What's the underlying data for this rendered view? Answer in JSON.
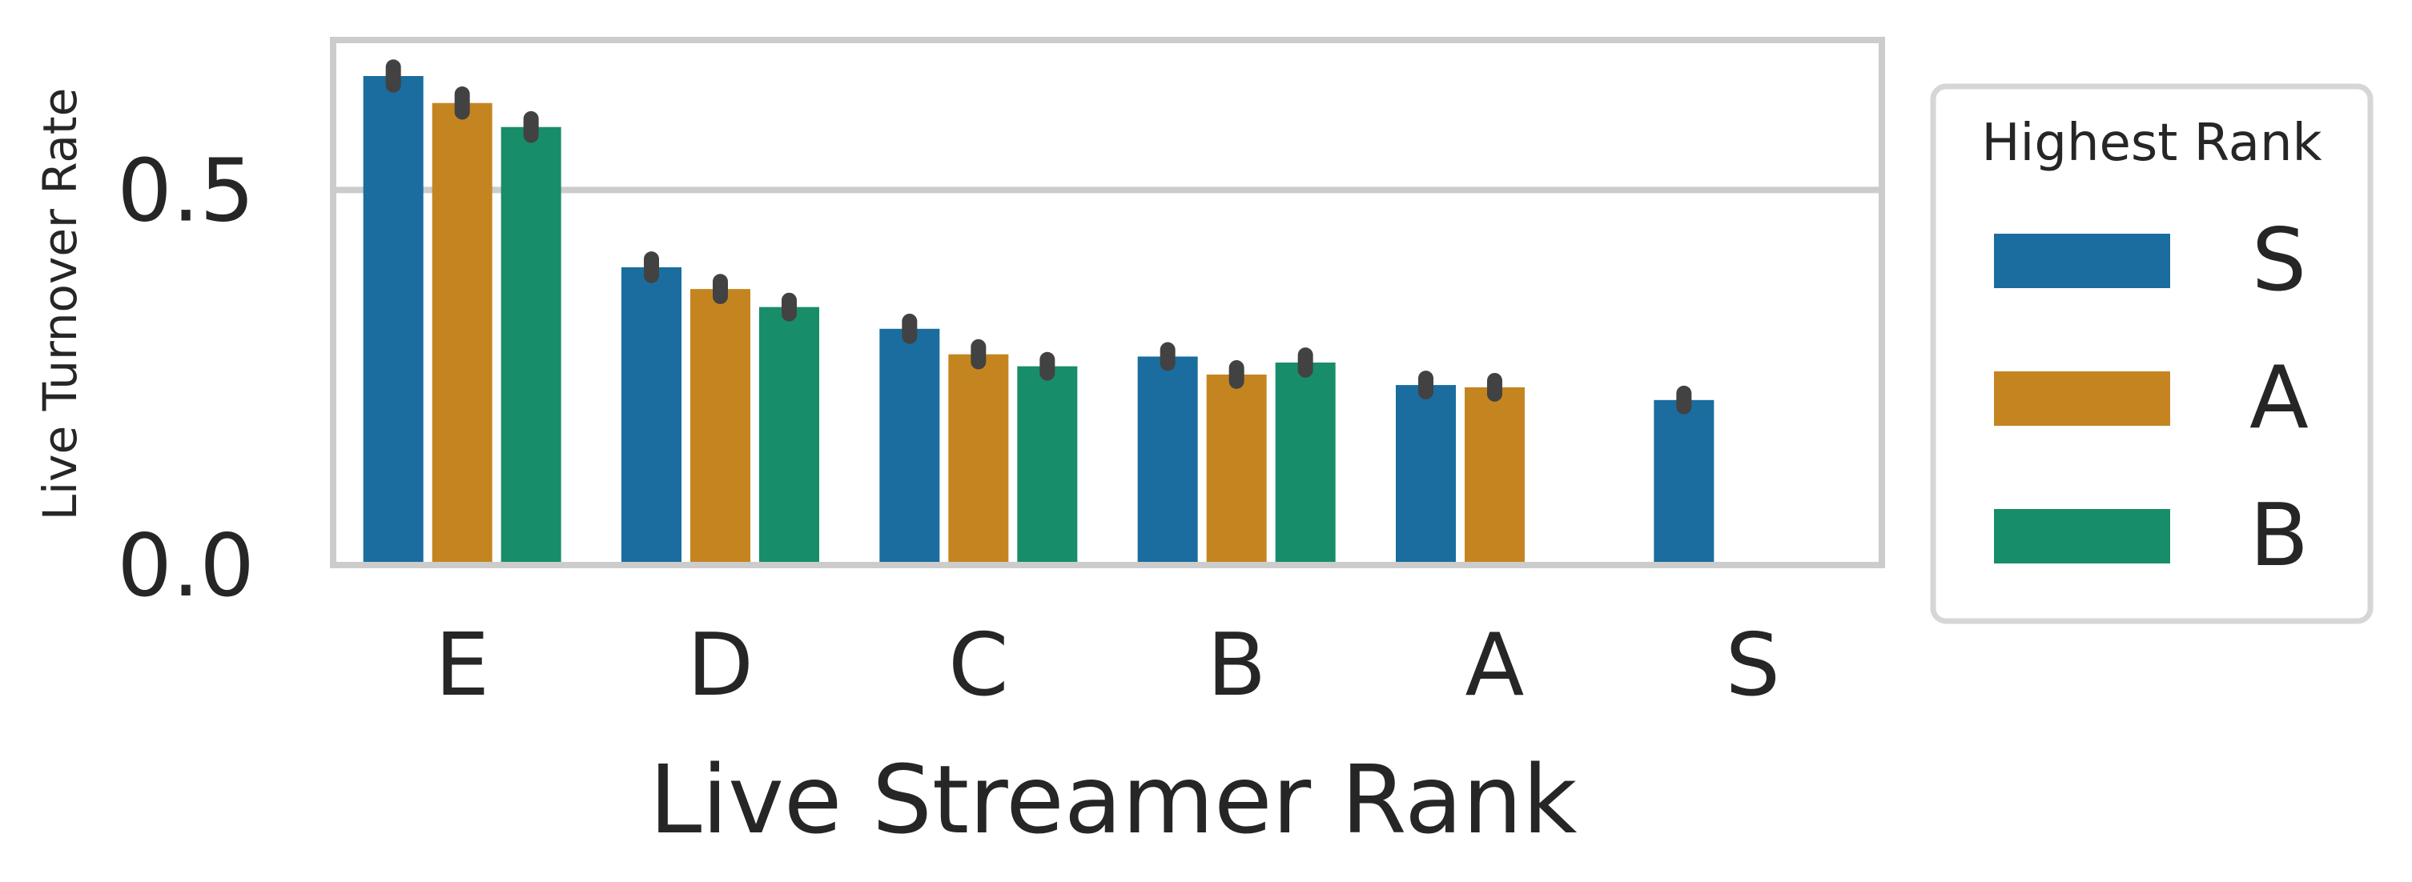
{
  "chart_data": {
    "type": "bar",
    "title": "",
    "xlabel": "Live Streamer Rank",
    "ylabel": "Live Turnover Rate",
    "categories": [
      "E",
      "D",
      "C",
      "B",
      "A",
      "S"
    ],
    "ylim": [
      0,
      0.7
    ],
    "yticks": [
      {
        "value": 0.0,
        "label": "0.0"
      },
      {
        "value": 0.5,
        "label": "0.5"
      }
    ],
    "grid": "horizontal",
    "legend": {
      "title": "Highest Rank",
      "placement": "outside-right"
    },
    "series": [
      {
        "name": "S",
        "color": "#1a6d9e",
        "values": [
          0.652,
          0.397,
          0.315,
          0.278,
          0.24,
          0.22
        ],
        "error": [
          0.012,
          0.011,
          0.01,
          0.009,
          0.009,
          0.009
        ]
      },
      {
        "name": "A",
        "color": "#c48521",
        "values": [
          0.616,
          0.368,
          0.281,
          0.254,
          0.237,
          null
        ],
        "error": [
          0.012,
          0.01,
          0.01,
          0.009,
          0.009,
          null
        ]
      },
      {
        "name": "B",
        "color": "#178d69",
        "values": [
          0.584,
          0.344,
          0.265,
          0.27,
          null,
          null
        ],
        "error": [
          0.011,
          0.009,
          0.009,
          0.01,
          null,
          null
        ]
      }
    ]
  }
}
